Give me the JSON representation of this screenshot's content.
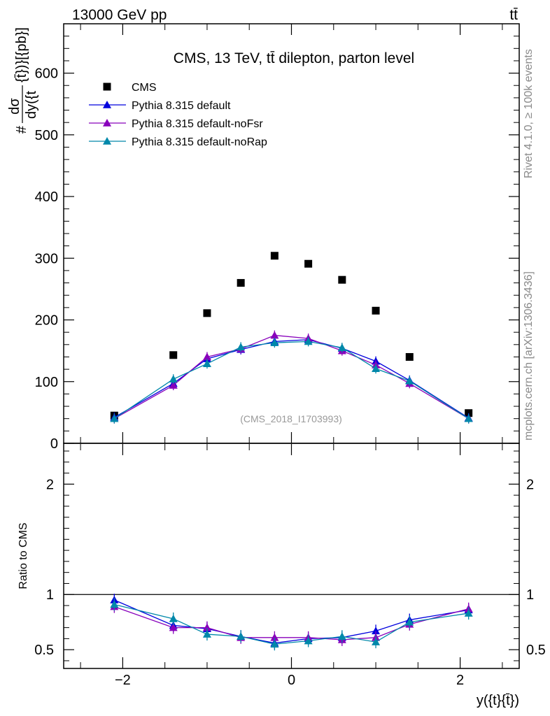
{
  "header": {
    "energy_label": "13000 GeV pp",
    "process_label": "tt̄"
  },
  "side_labels": {
    "rivet": "Rivet 4.1.0, ≥ 100k events",
    "source": "mcplots.cern.ch [arXiv:1306.3436]"
  },
  "chart_data": [
    {
      "type": "scatter",
      "title": "CMS, 13 TeV, tt̄ dilepton, parton level",
      "watermark": "(CMS_2018_I1703993)",
      "ylabel_prefix": "#",
      "ylabel_numerator": "dσ",
      "ylabel_denominator": "dy({t",
      "ylabel_suffix": "{t̄})}[{pb}]",
      "xlim": [
        -2.7,
        2.7
      ],
      "ylim": [
        0,
        680
      ],
      "yticks": [
        0,
        100,
        200,
        300,
        400,
        500,
        600
      ],
      "x": [
        -2.1,
        -1.4,
        -1.0,
        -0.6,
        -0.2,
        0.2,
        0.6,
        1.0,
        1.4,
        2.1
      ],
      "series": [
        {
          "name": "CMS",
          "color": "#000000",
          "marker": "square",
          "values": [
            45,
            143,
            211,
            260,
            304,
            291,
            265,
            215,
            140,
            49
          ]
        },
        {
          "name": "Pythia 8.315 default",
          "color": "#0000dd",
          "marker": "triangle",
          "values": [
            42,
            97,
            137,
            152,
            165,
            168,
            154,
            133,
            102,
            41
          ]
        },
        {
          "name": "Pythia 8.315 default-noFsr",
          "color": "#8800bb",
          "marker": "triangle",
          "values": [
            40,
            94,
            140,
            153,
            175,
            170,
            150,
            127,
            97,
            40
          ]
        },
        {
          "name": "Pythia 8.315 default-noRap",
          "color": "#0088aa",
          "marker": "triangle",
          "values": [
            40,
            104,
            129,
            156,
            163,
            165,
            155,
            121,
            101,
            40
          ]
        }
      ]
    },
    {
      "type": "line",
      "ylabel": "Ratio to CMS",
      "xlabel": "y({t}{t̄})",
      "xlim": [
        -2.7,
        2.7
      ],
      "ylim": [
        0.33,
        2.37
      ],
      "yticks": [
        0.5,
        1,
        2
      ],
      "xticks": [
        -2,
        0,
        2
      ],
      "reference": 1,
      "x": [
        -2.1,
        -1.4,
        -1.0,
        -0.6,
        -0.2,
        0.2,
        0.6,
        1.0,
        1.4,
        2.1
      ],
      "series": [
        {
          "name": "Pythia 8.315 default",
          "color": "#0000dd",
          "values": [
            0.95,
            0.72,
            0.69,
            0.62,
            0.56,
            0.6,
            0.61,
            0.67,
            0.77,
            0.86
          ]
        },
        {
          "name": "Pythia 8.315 default-noFsr",
          "color": "#8800bb",
          "values": [
            0.89,
            0.7,
            0.7,
            0.61,
            0.61,
            0.61,
            0.59,
            0.61,
            0.73,
            0.87
          ]
        },
        {
          "name": "Pythia 8.315 default-noRap",
          "color": "#0088aa",
          "values": [
            0.91,
            0.78,
            0.64,
            0.62,
            0.55,
            0.58,
            0.62,
            0.57,
            0.75,
            0.83
          ]
        }
      ]
    }
  ]
}
